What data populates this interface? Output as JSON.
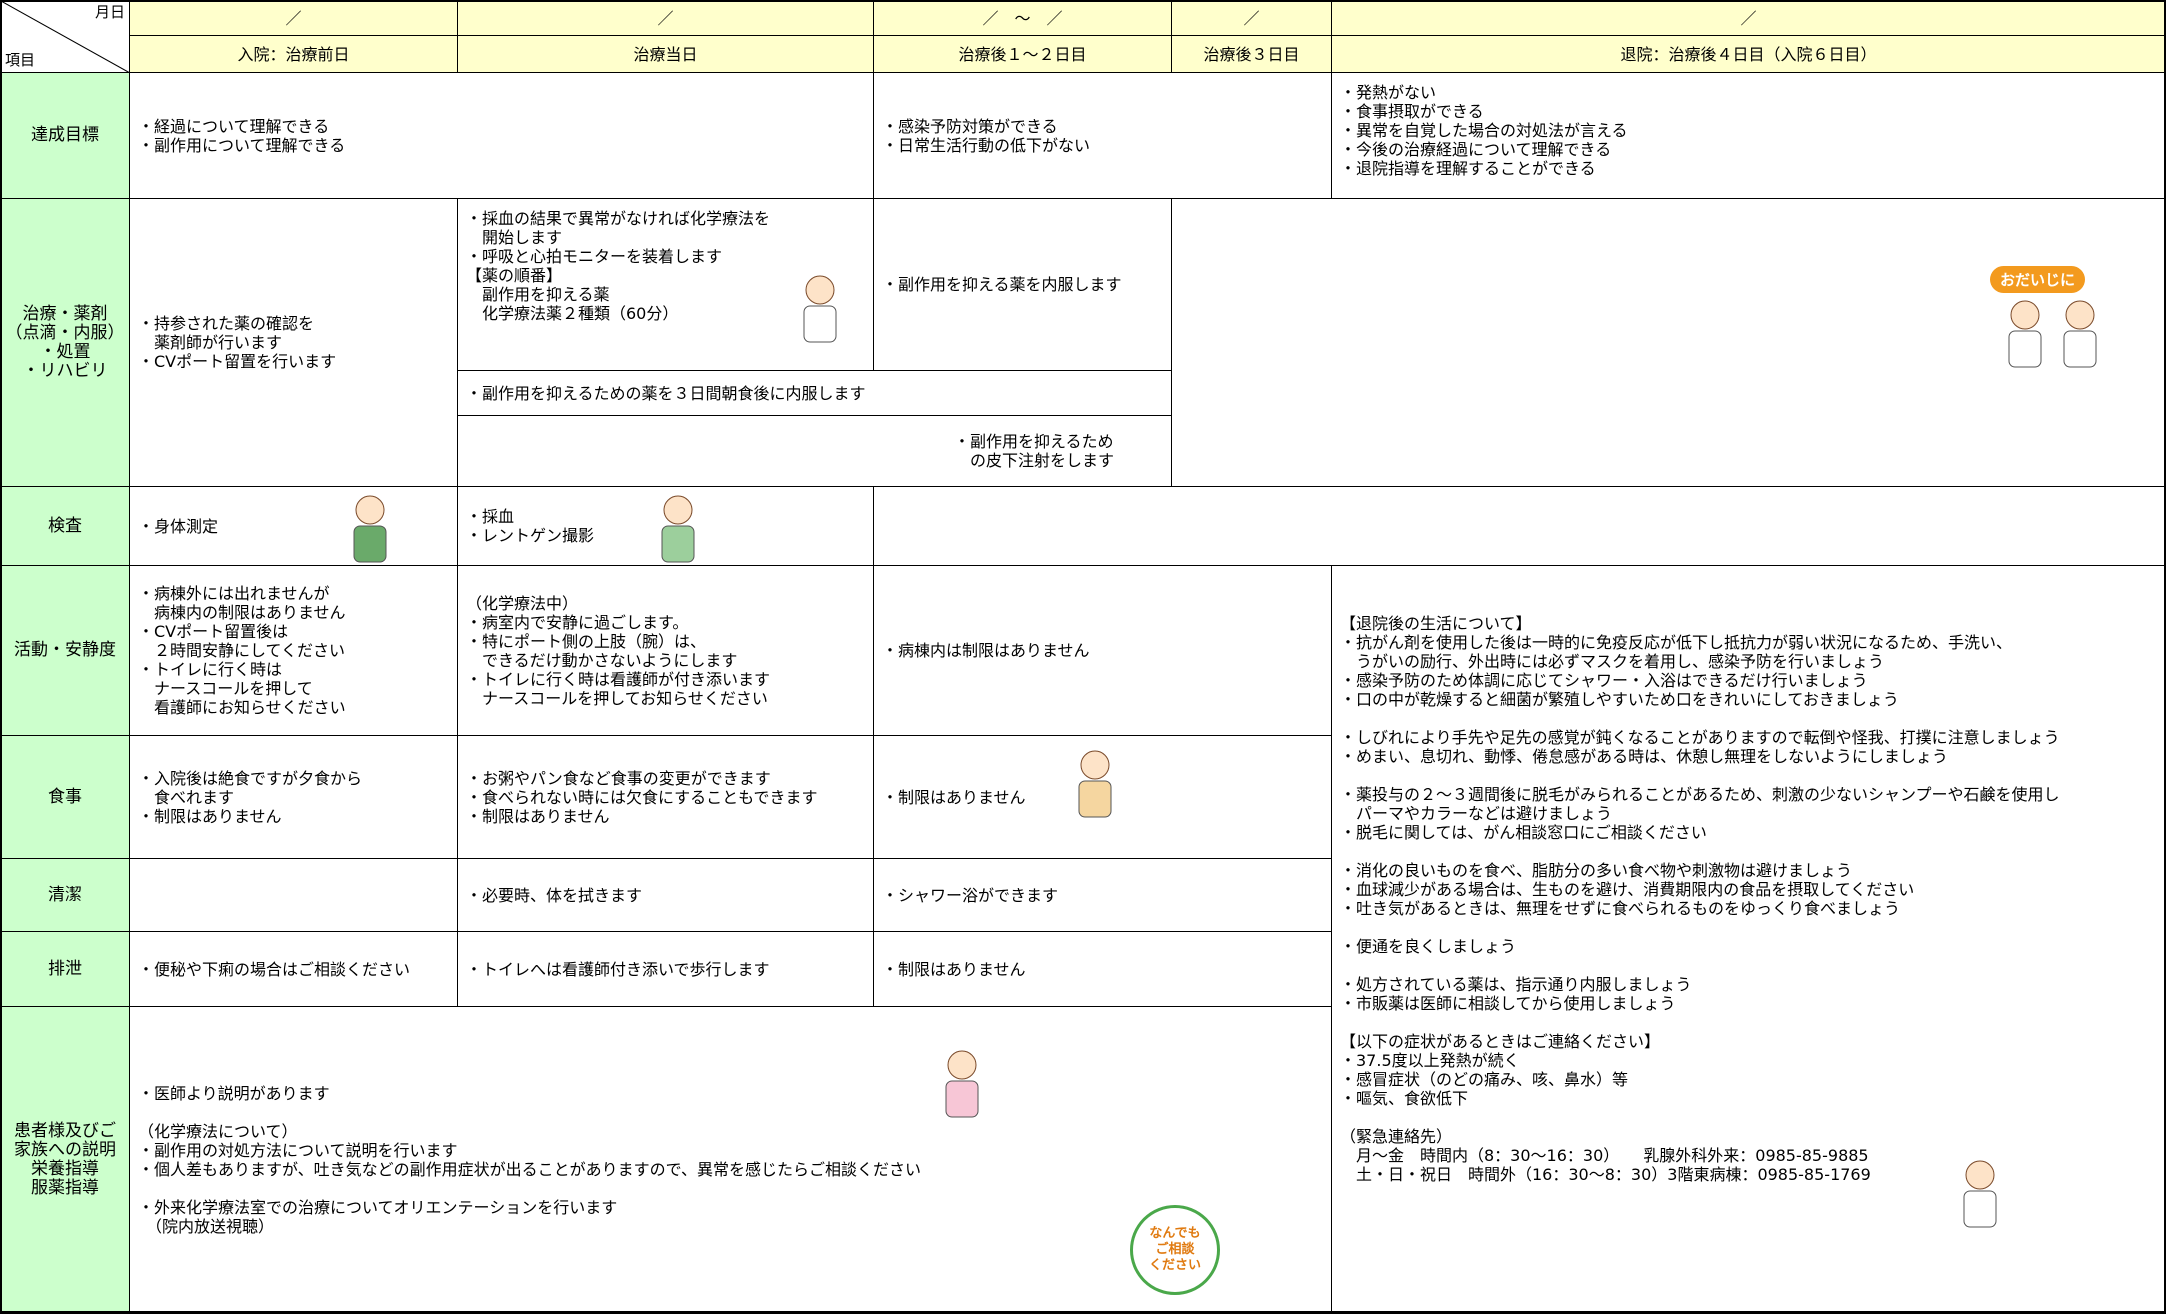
{
  "header": {
    "month_day": "月日",
    "item": "項目",
    "dates": [
      "／",
      "／",
      "／　〜　／",
      "／",
      "／"
    ],
    "phases": [
      "入院：治療前日",
      "治療当日",
      "治療後１〜２日目",
      "治療後３日目",
      "退院：治療後４日目（入院６日目）"
    ]
  },
  "rows": [
    {
      "label": [
        "達成目標"
      ]
    },
    {
      "label": [
        "治療・薬剤",
        "（点滴・内服）",
        "・処置",
        "・リハビリ"
      ]
    },
    {
      "label": [
        "検査"
      ]
    },
    {
      "label": [
        "活動・安静度"
      ]
    },
    {
      "label": [
        "食事"
      ]
    },
    {
      "label": [
        "清潔"
      ]
    },
    {
      "label": [
        "排泄"
      ]
    },
    {
      "label": [
        "患者様及びご",
        "家族への説明",
        "栄養指導",
        "服薬指導"
      ]
    }
  ],
  "cells": [
    {
      "blocks": [
        [
          "・経過について理解できる",
          "・副作用について理解できる"
        ]
      ]
    },
    {
      "blocks": [
        [
          "・感染予防対策ができる",
          "・日常生活行動の低下がない"
        ]
      ]
    },
    {
      "blocks": [
        [
          "・発熱がない",
          "・食事摂取ができる",
          "・異常を自覚した場合の対処法が言える",
          "・今後の治療経過について理解できる",
          "・退院指導を理解することができる"
        ]
      ]
    },
    {
      "blocks": [
        [
          "・持参された薬の確認を",
          "　薬剤師が行います",
          "・CVポート留置を行います"
        ]
      ]
    },
    {
      "blocks": [
        [
          "・採血の結果で異常がなければ化学療法を",
          "　開始します",
          "・呼吸と心拍モニターを装着します",
          "【薬の順番】",
          "　副作用を抑える薬",
          "　化学療法薬２種類（60分）"
        ]
      ]
    },
    {
      "blocks": [
        [
          "・副作用を抑える薬を内服します"
        ]
      ]
    },
    {
      "blocks": [
        [
          "・副作用を抑えるための薬を３日間朝食後に内服します"
        ]
      ]
    },
    {
      "blocks": [
        [
          "・副作用を抑えるため",
          "　の皮下注射をします"
        ]
      ]
    },
    {
      "blocks": [
        [
          "・身体測定"
        ]
      ]
    },
    {
      "blocks": [
        [
          "・採血",
          "・レントゲン撮影"
        ]
      ]
    },
    {
      "blocks": [
        [
          "・病棟外には出れませんが",
          "　病棟内の制限はありません",
          "・CVポート留置後は",
          "　２時間安静にしてください",
          "・トイレに行く時は",
          "　ナースコールを押して",
          "　看護師にお知らせください"
        ]
      ]
    },
    {
      "blocks": [
        [
          "（化学療法中）",
          "・病室内で安静に過ごします。",
          "・特にポート側の上肢（腕）は、",
          "　できるだけ動かさないようにします",
          "・トイレに行く時は看護師が付き添います",
          "　ナースコールを押してお知らせください"
        ]
      ]
    },
    {
      "blocks": [
        [
          "・病棟内は制限はありません"
        ]
      ]
    },
    {
      "blocks": [
        [
          "【退院後の生活について】",
          "・抗がん剤を使用した後は一時的に免疫反応が低下し抵抗力が弱い状況になるため、手洗い、",
          "　うがいの励行、外出時には必ずマスクを着用し、感染予防を行いましょう",
          "・感染予防のため体調に応じてシャワー・入浴はできるだけ行いましょう",
          "・口の中が乾燥すると細菌が繁殖しやすいため口をきれいにしておきましょう"
        ],
        [
          "・しびれにより手先や足先の感覚が鈍くなることがありますので転倒や怪我、打撲に注意しましょう",
          "・めまい、息切れ、動悸、倦怠感がある時は、休憩し無理をしないようにしましょう"
        ],
        [
          "・薬投与の２〜３週間後に脱毛がみられることがあるため、刺激の少ないシャンプーや石鹸を使用し",
          "　パーマやカラーなどは避けましょう",
          "・脱毛に関しては、がん相談窓口にご相談ください"
        ],
        [
          "・消化の良いものを食べ、脂肪分の多い食べ物や刺激物は避けましょう",
          "・血球減少がある場合は、生ものを避け、消費期限内の食品を摂取してください",
          "・吐き気があるときは、無理をせずに食べられるものをゆっくり食べましょう"
        ],
        [
          "・便通を良くしましょう"
        ],
        [
          "・処方されている薬は、指示通り内服しましょう",
          "・市販薬は医師に相談してから使用しましょう"
        ],
        [
          "【以下の症状があるときはご連絡ください】",
          "・37.5度以上発熱が続く",
          "・感冒症状（のどの痛み、咳、鼻水）等",
          "・嘔気、食欲低下"
        ],
        [
          "（緊急連絡先）",
          "　月〜金　時間内（8：30〜16：30）　　乳腺外科外来：0985-85-9885",
          "　土・日・祝日　時間外（16：30〜8：30）3階東病棟：0985-85-1769"
        ]
      ]
    },
    {
      "blocks": [
        [
          "・入院後は絶食ですが夕食から",
          "　食べれます",
          "・制限はありません"
        ]
      ]
    },
    {
      "blocks": [
        [
          "・お粥やパン食など食事の変更ができます",
          "・食べられない時には欠食にすることもできます",
          "・制限はありません"
        ]
      ]
    },
    {
      "blocks": [
        [
          "・制限はありません"
        ]
      ]
    },
    {
      "blocks": [
        [
          "・必要時、体を拭きます"
        ]
      ]
    },
    {
      "blocks": [
        [
          "・シャワー浴ができます"
        ]
      ]
    },
    {
      "blocks": [
        [
          "・便秘や下痢の場合はご相談ください"
        ]
      ]
    },
    {
      "blocks": [
        [
          "・トイレへは看護師付き添いで歩行します"
        ]
      ]
    },
    {
      "blocks": [
        [
          "・制限はありません"
        ]
      ]
    },
    {
      "blocks": [
        [
          "・医師より説明があります"
        ],
        [
          "（化学療法について）",
          "・副作用の対処方法について説明を行います",
          "・個人差もありますが、吐き気などの副作用症状が出ることがありますので、異常を感じたらご相談ください"
        ],
        [
          "・外来化学療法室での治療についてオリエンテーションを行います",
          "　（院内放送視聴）"
        ]
      ]
    }
  ],
  "badges": {
    "odaijini": "おだいじに",
    "soudan": [
      "なんでも",
      "ご相談",
      "ください"
    ]
  }
}
